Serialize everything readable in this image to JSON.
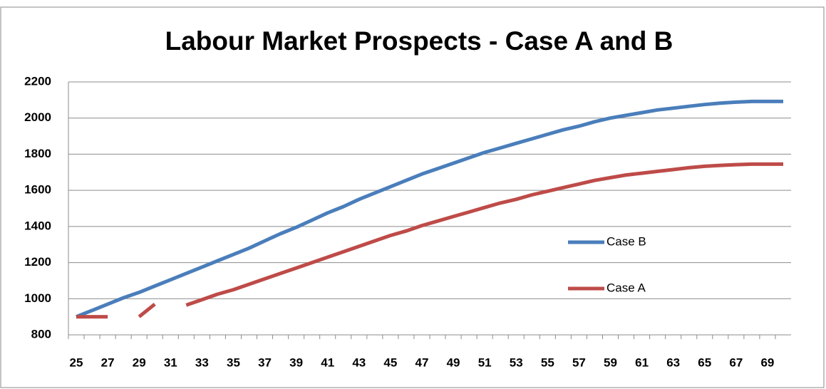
{
  "chart_data": {
    "type": "line",
    "title": "Labour Market Prospects - Case A and B",
    "categories": [
      25,
      null,
      27,
      null,
      29,
      null,
      31,
      null,
      33,
      null,
      35,
      null,
      37,
      null,
      39,
      null,
      41,
      null,
      43,
      null,
      45,
      null,
      47,
      null,
      49,
      null,
      51,
      null,
      53,
      null,
      55,
      null,
      57,
      null,
      59,
      null,
      61,
      null,
      63,
      null,
      65,
      null,
      67,
      null,
      69,
      null
    ],
    "series": [
      {
        "name": "Case B",
        "color": "#4a7ebb",
        "values": [
          900,
          935,
          970,
          1005,
          1035,
          1070,
          1105,
          1140,
          1175,
          1210,
          1245,
          1280,
          1320,
          1360,
          1395,
          1435,
          1475,
          1510,
          1550,
          1585,
          1620,
          1655,
          1690,
          1720,
          1750,
          1780,
          1810,
          1835,
          1860,
          1885,
          1910,
          1935,
          1955,
          1980,
          2000,
          2015,
          2030,
          2045,
          2055,
          2065,
          2075,
          2083,
          2088,
          2092,
          2092,
          2092
        ]
      },
      {
        "name": "Case A",
        "color": "#be4b48",
        "values": [
          900,
          900,
          900,
          null,
          900,
          970,
          null,
          965,
          995,
          1025,
          1050,
          1080,
          1110,
          1140,
          1170,
          1200,
          1230,
          1260,
          1290,
          1320,
          1350,
          1375,
          1405,
          1430,
          1455,
          1480,
          1505,
          1530,
          1550,
          1575,
          1595,
          1615,
          1635,
          1655,
          1670,
          1685,
          1695,
          1705,
          1715,
          1725,
          1733,
          1738,
          1742,
          1745,
          1745,
          1745
        ]
      }
    ],
    "ylim": [
      800,
      2200
    ],
    "yticks": [
      800,
      1000,
      1200,
      1400,
      1600,
      1800,
      2000,
      2200
    ],
    "grid": true
  }
}
